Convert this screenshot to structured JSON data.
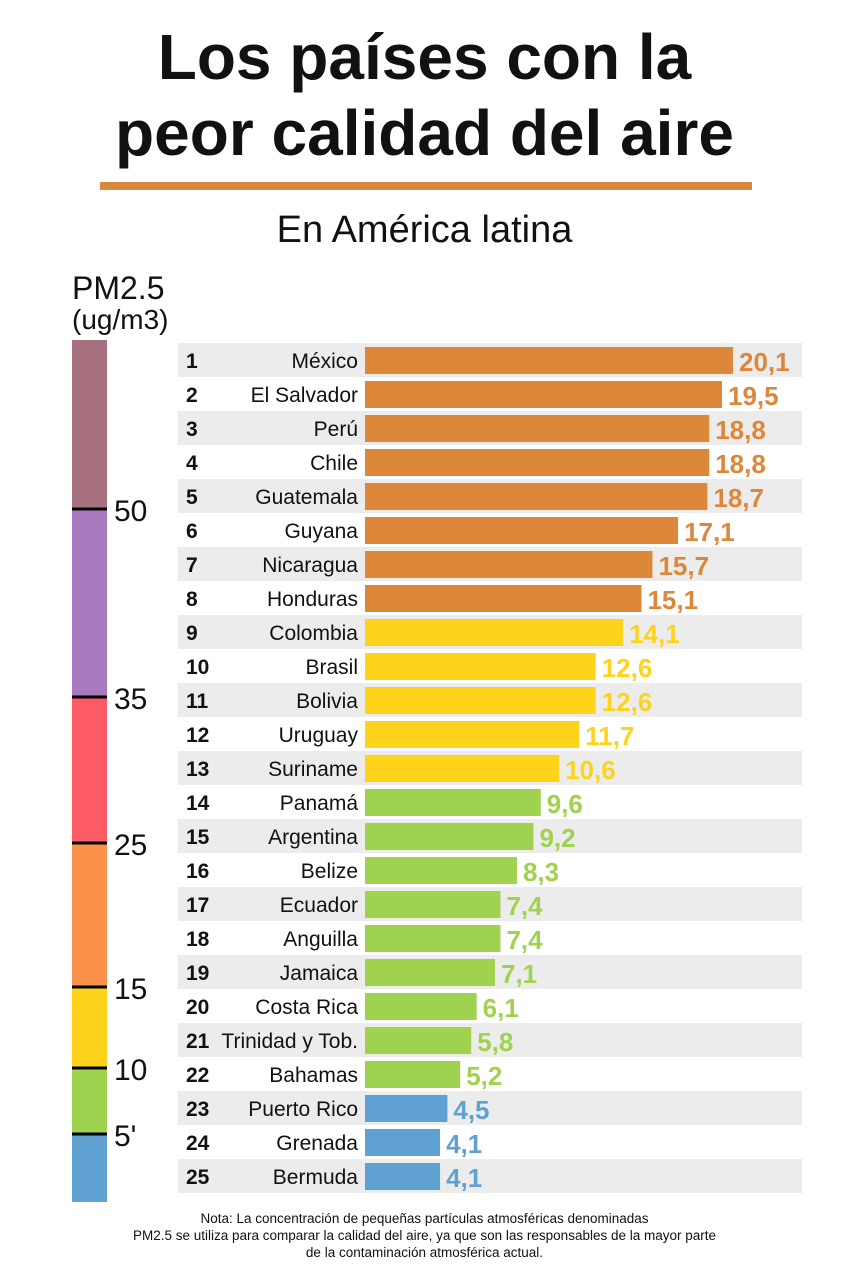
{
  "header": {
    "title_line1": "Los países con la",
    "title_line2": "peor calidad del aire",
    "subtitle": "En América latina"
  },
  "scale": {
    "label": "PM2.5",
    "unit": "(ug/m3)",
    "bands": [
      {
        "from": 0,
        "to": 5,
        "color": "#5fa1d1"
      },
      {
        "from": 5,
        "to": 10,
        "color": "#9fd24e"
      },
      {
        "from": 10,
        "to": 15,
        "color": "#fdd41b"
      },
      {
        "from": 15,
        "to": 25,
        "color": "#fc914a"
      },
      {
        "from": 25,
        "to": 35,
        "color": "#fc5a64"
      },
      {
        "from": 35,
        "to": 50,
        "color": "#a879be"
      },
      {
        "from": 50,
        "to": 60,
        "color": "#a7717f"
      }
    ],
    "ticks": [
      {
        "value": 5,
        "label": "5'"
      },
      {
        "value": 10,
        "label": "10"
      },
      {
        "value": 15,
        "label": "15"
      },
      {
        "value": 25,
        "label": "25"
      },
      {
        "value": 35,
        "label": "35"
      },
      {
        "value": 50,
        "label": "50"
      }
    ]
  },
  "chart_data": {
    "type": "bar",
    "orientation": "horizontal",
    "title": "Los países con la peor calidad del aire",
    "subtitle": "En América latina",
    "xlim": [
      0,
      22
    ],
    "categories": [
      "México",
      "El Salvador",
      "Perú",
      "Chile",
      "Guatemala",
      "Guyana",
      "Nicaragua",
      "Honduras",
      "Colombia",
      "Brasil",
      "Bolivia",
      "Uruguay",
      "Suriname",
      "Panamá",
      "Argentina",
      "Belize",
      "Ecuador",
      "Anguilla",
      "Jamaica",
      "Costa Rica",
      "Trinidad y Tob.",
      "Bahamas",
      "Puerto Rico",
      "Grenada",
      "Bermuda"
    ],
    "ranks": [
      "1",
      "2",
      "3",
      "4",
      "5",
      "6",
      "7",
      "8",
      "9",
      "10",
      "11",
      "12",
      "13",
      "14",
      "15",
      "16",
      "17",
      "18",
      "19",
      "20",
      "21",
      "22",
      "23",
      "24",
      "25"
    ],
    "values": [
      20.1,
      19.5,
      18.8,
      18.8,
      18.7,
      17.1,
      15.7,
      15.1,
      14.1,
      12.6,
      12.6,
      11.7,
      10.6,
      9.6,
      9.2,
      8.3,
      7.4,
      7.4,
      7.1,
      6.1,
      5.8,
      5.2,
      4.5,
      4.1,
      4.1
    ],
    "value_labels": [
      "20,1",
      "19,5",
      "18,8",
      "18,8",
      "18,7",
      "17,1",
      "15,7",
      "15,1",
      "14,1",
      "12,6",
      "12,6",
      "11,7",
      "10,6",
      "9,6",
      "9,2",
      "8,3",
      "7,4",
      "7,4",
      "7,1",
      "6,1",
      "5,8",
      "5,2",
      "4,5",
      "4,1",
      "4,1"
    ],
    "bar_colors": [
      "#dd873b",
      "#dd873b",
      "#dd873b",
      "#dd873b",
      "#dd873b",
      "#dd873b",
      "#dd873b",
      "#dd873b",
      "#fdd41b",
      "#fdd41b",
      "#fdd41b",
      "#fdd41b",
      "#fdd41b",
      "#9fd24e",
      "#9fd24e",
      "#9fd24e",
      "#9fd24e",
      "#9fd24e",
      "#9fd24e",
      "#9fd24e",
      "#9fd24e",
      "#9fd24e",
      "#5fa1d1",
      "#5fa1d1",
      "#5fa1d1"
    ],
    "row_stripe_color": "#ececec"
  },
  "note": {
    "line1": "Nota: La concentración de pequeñas partículas atmosféricas denominadas",
    "line2": "PM2.5 se utiliza para comparar la calidad del aire, ya que son las responsables de la mayor parte",
    "line3": "de la contaminación atmosférica actual."
  }
}
